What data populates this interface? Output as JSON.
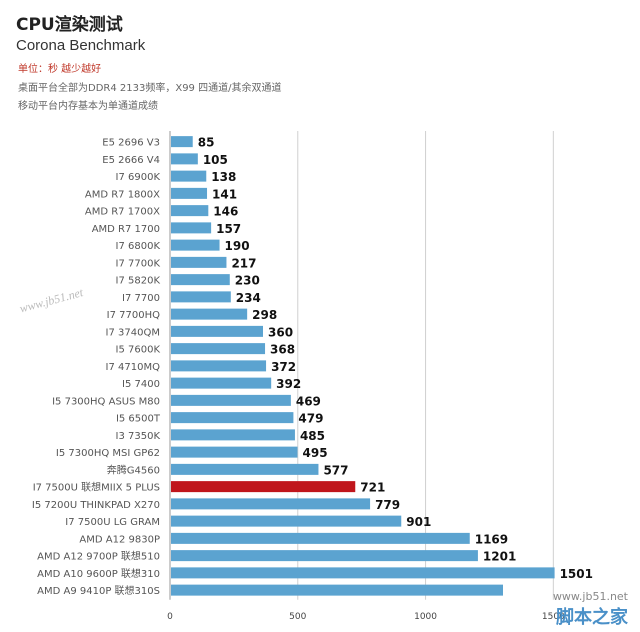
{
  "header": {
    "title": "CPU渲染测试",
    "subtitle": "Corona Benchmark",
    "unit": "单位：秒 越少越好",
    "note1": "桌面平台全部为DDR4 2133频率，X99 四通道/其余双通道",
    "note2": "移动平台内存基本为单通道成绩"
  },
  "watermarks": {
    "left": "www.jb51.net",
    "right_url": "www.jb51.net",
    "right_brand": "脚本之家"
  },
  "colors": {
    "bar": "#5ba3d0",
    "highlight": "#c0161c",
    "grid": "#d0d0d0",
    "axis": "#999999"
  },
  "chart_data": {
    "type": "bar",
    "orientation": "horizontal",
    "categories": [
      "E5 2696 V3",
      "E5 2666 V4",
      "I7 6900K",
      "AMD R7 1800X",
      "AMD R7 1700X",
      "AMD R7 1700",
      "I7 6800K",
      "I7 7700K",
      "I7 5820K",
      "I7 7700",
      "I7 7700HQ",
      "I7 3740QM",
      "I5 7600K",
      "I7 4710MQ",
      "I5 7400",
      "I5 7300HQ ASUS M80",
      "I5 6500T",
      "I3 7350K",
      "I5 7300HQ MSI GP62",
      "奔腾G4560",
      "I7 7500U 联想MIIX 5 PLUS",
      "I5 7200U THINKPAD X270",
      "I7 7500U LG GRAM",
      "AMD A12  9830P",
      "AMD A12 9700P 联想510",
      "AMD A10 9600P 联想310",
      "AMD A9  9410P 联想310S"
    ],
    "values": [
      85,
      105,
      138,
      141,
      146,
      157,
      190,
      217,
      230,
      234,
      298,
      360,
      368,
      372,
      392,
      469,
      479,
      485,
      495,
      577,
      721,
      779,
      901,
      1169,
      1201,
      1501,
      null
    ],
    "value_labels": [
      "85",
      "105",
      "138",
      "141",
      "146",
      "157",
      "190",
      "217",
      "230",
      "234",
      "298",
      "360",
      "368",
      "372",
      "392",
      "469",
      "479",
      "485",
      "495",
      "577",
      "721",
      "779",
      "901",
      "1169",
      "1201",
      "1501",
      ""
    ],
    "highlight_index": 20,
    "x_ticks": [
      "0",
      "500",
      "1000",
      "1500"
    ],
    "xlim": [
      0,
      1800
    ],
    "grid": true
  }
}
